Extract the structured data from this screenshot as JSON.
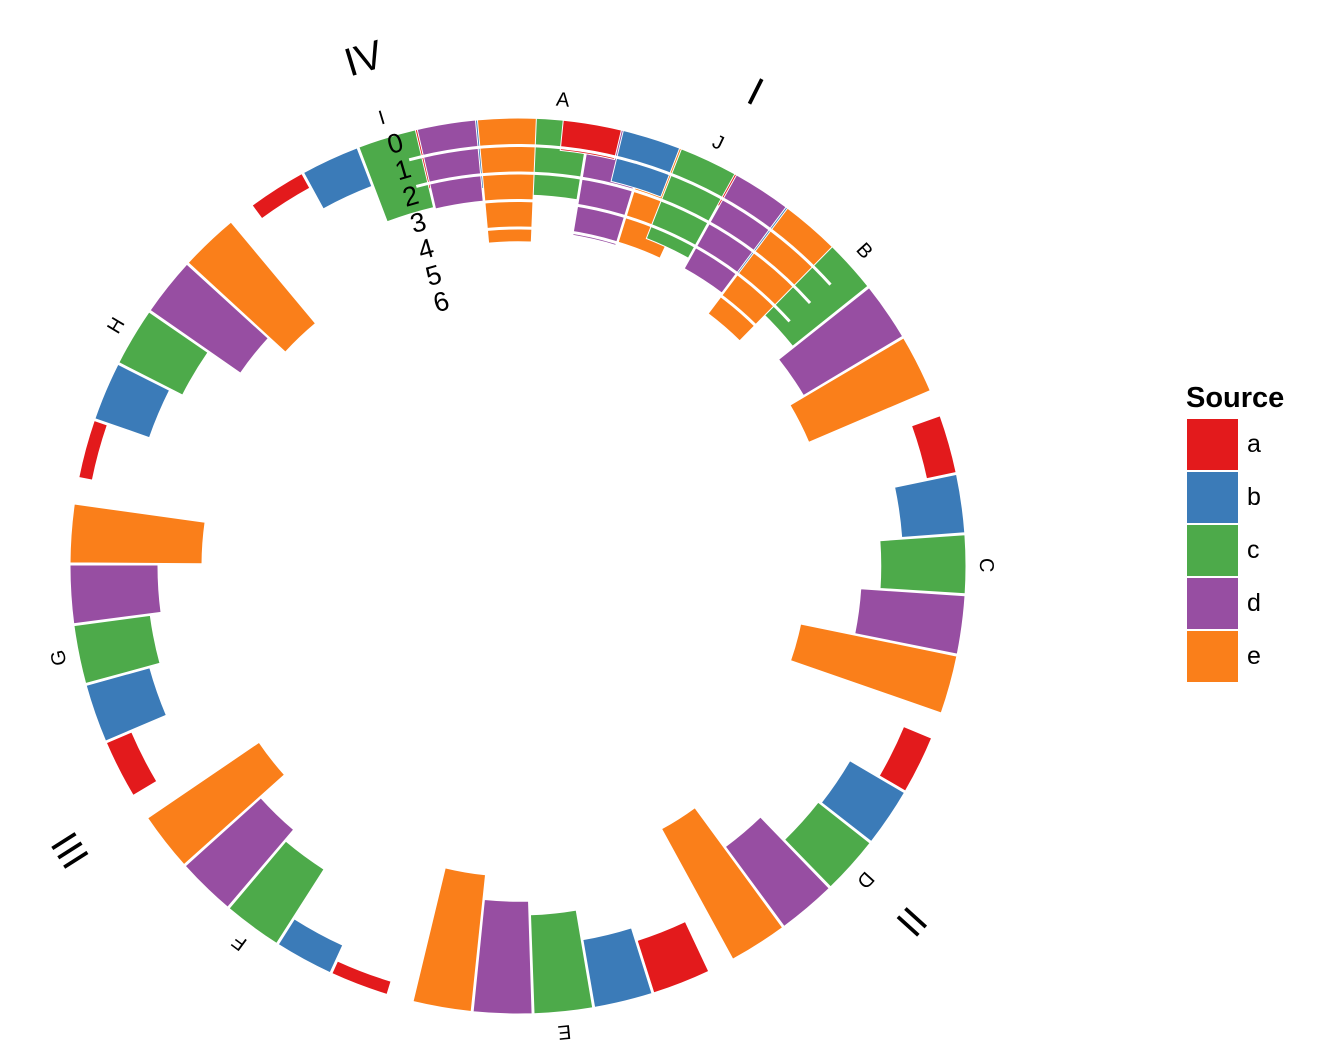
{
  "chart_data": {
    "type": "bar",
    "layout": "circular stacked bar",
    "groups": [
      {
        "label": "I",
        "segments": [
          "A",
          "B"
        ]
      },
      {
        "label": "II",
        "segments": [
          "C",
          "D",
          "E"
        ]
      },
      {
        "label": "III",
        "segments": [
          "F",
          "G"
        ]
      },
      {
        "label": "IV",
        "segments": [
          "H",
          "I",
          "J"
        ]
      }
    ],
    "segments": [
      "A",
      "B",
      "C",
      "D",
      "E",
      "F",
      "G",
      "H",
      "I",
      "J"
    ],
    "series": [
      {
        "name": "a",
        "values": [
          2.2,
          1.3,
          1.1,
          1.1,
          2.0,
          0.5,
          1.0,
          0.5,
          0.6,
          1.1
        ]
      },
      {
        "name": "b",
        "values": [
          2.5,
          3.0,
          2.3,
          2.3,
          2.5,
          1.1,
          2.4,
          2.1,
          1.5,
          1.9
        ]
      },
      {
        "name": "c",
        "values": [
          2.8,
          3.5,
          3.1,
          2.4,
          3.6,
          3.2,
          2.8,
          2.6,
          2.9,
          3.5
        ]
      },
      {
        "name": "d",
        "values": [
          4.1,
          4.2,
          3.8,
          3.6,
          4.1,
          3.7,
          3.2,
          4.0,
          3.0,
          3.9
        ]
      },
      {
        "name": "e",
        "values": [
          4.0,
          4.8,
          5.8,
          5.4,
          5.0,
          4.9,
          4.8,
          4.8,
          4.5,
          4.8
        ]
      }
    ],
    "radial_ticks": [
      "0",
      "1",
      "2",
      "3",
      "4",
      "5",
      "6"
    ],
    "legend": {
      "title": "Source",
      "position": "right"
    },
    "colors": {
      "a": "#e31a1c",
      "b": "#3b7bb8",
      "c": "#4daa4a",
      "d": "#974ea2",
      "e": "#fa7f1a"
    },
    "grid": false
  }
}
